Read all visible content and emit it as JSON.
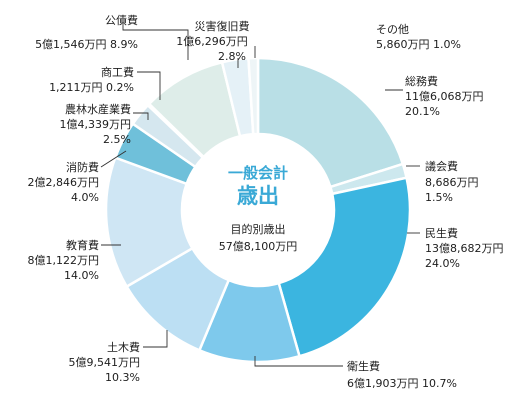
{
  "chart_data": {
    "type": "pie",
    "style": "donut",
    "title": "一般会計",
    "subtitle": "歳出",
    "total_label": "目的別歳出",
    "total_value": "57億8,100万円",
    "colors": {
      "accent": "#3bb5e0",
      "title_text": "#3aa9d6"
    },
    "slices": [
      {
        "name": "総務費",
        "amount": "11億6,068万円",
        "percent": 20.1,
        "percent_label": "20.1%",
        "color": "#b9dfe6"
      },
      {
        "name": "議会費",
        "amount": "8,686万円",
        "percent": 1.5,
        "percent_label": "1.5%",
        "color": "#cde8ee"
      },
      {
        "name": "民生費",
        "amount": "13億8,682万円",
        "percent": 24.0,
        "percent_label": "24.0%",
        "color": "#3bb5e0"
      },
      {
        "name": "衛生費",
        "amount": "6億1,903万円",
        "percent": 10.7,
        "percent_label": "10.7%",
        "color": "#7ec9ec"
      },
      {
        "name": "土木費",
        "amount": "5億9,541万円",
        "percent": 10.3,
        "percent_label": "10.3%",
        "color": "#bcdff3"
      },
      {
        "name": "教育費",
        "amount": "8億1,122万円",
        "percent": 14.0,
        "percent_label": "14.0%",
        "color": "#cfe6f4"
      },
      {
        "name": "消防費",
        "amount": "2億2,846万円",
        "percent": 4.0,
        "percent_label": "4.0%",
        "color": "#6fc0da"
      },
      {
        "name": "農林水産業費",
        "amount": "1億4,339万円",
        "percent": 2.5,
        "percent_label": "2.5%",
        "color": "#d5e7ef"
      },
      {
        "name": "商工費",
        "amount": "1,211万円",
        "percent": 0.2,
        "percent_label": "0.2%",
        "color": "#bfe0e8"
      },
      {
        "name": "公債費",
        "amount": "5億1,546万円",
        "percent": 8.9,
        "percent_label": "8.9%",
        "color": "#deede9"
      },
      {
        "name": "災害復旧費",
        "amount": "1億6,296万円",
        "percent": 2.8,
        "percent_label": "2.8%",
        "color": "#e5f1f7"
      },
      {
        "name": "その他",
        "amount": "5,860万円",
        "percent": 1.0,
        "percent_label": "1.0%",
        "color": "#eef5f7"
      }
    ]
  }
}
